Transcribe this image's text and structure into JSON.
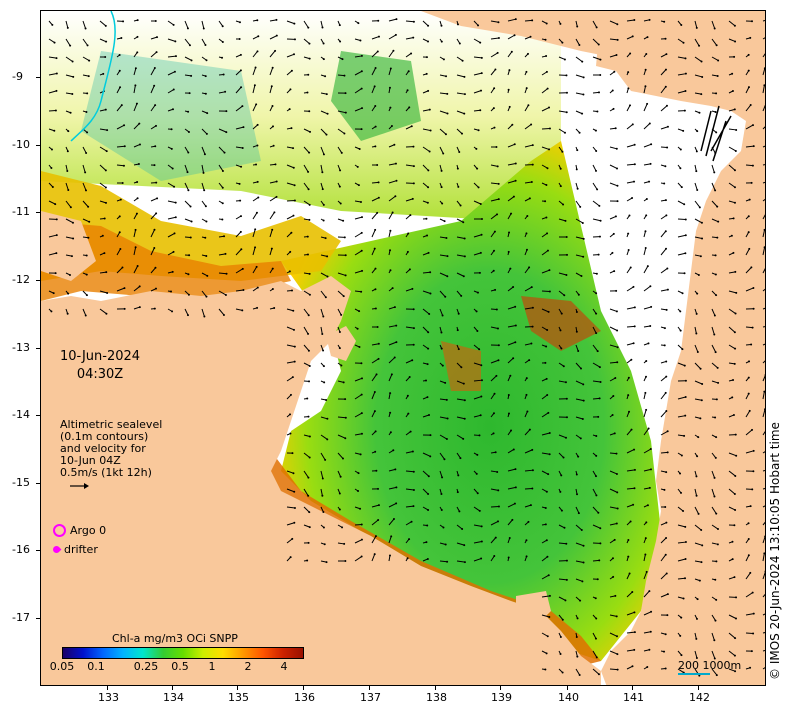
{
  "map": {
    "date": "10-Jun-2024",
    "time": "04:30Z",
    "altimetry_label_lines": [
      "Altimetric sealevel",
      "(0.1m contours)",
      "and velocity for",
      "10-Jun 04Z",
      "0.5m/s (1kt 12h)"
    ],
    "argo_label": "Argo 0",
    "drifter_label": "drifter",
    "colorbar_title": "Chl-a mg/m3 OCi SNPP",
    "colorbar_ticks": [
      "0.05",
      "0.1",
      "0.25",
      "0.5",
      "1",
      "2",
      "4"
    ],
    "scale_bar_label": "200  1000m",
    "credit": "© IMOS 20-Jun-2024 13:10:05 Hobart time",
    "lon_ticks": [
      "133",
      "134",
      "135",
      "136",
      "137",
      "138",
      "139",
      "140",
      "141",
      "142"
    ],
    "lat_ticks": [
      "-9",
      "-10",
      "-11",
      "-12",
      "-13",
      "-14",
      "-15",
      "-16",
      "-17"
    ],
    "colors": {
      "land": "#f9c89b",
      "no_data": "#ffffff",
      "chl_low": "#1a0066",
      "chl_high": "#991100",
      "argo": "#ff00ff",
      "drifter": "#ff00ff"
    }
  }
}
